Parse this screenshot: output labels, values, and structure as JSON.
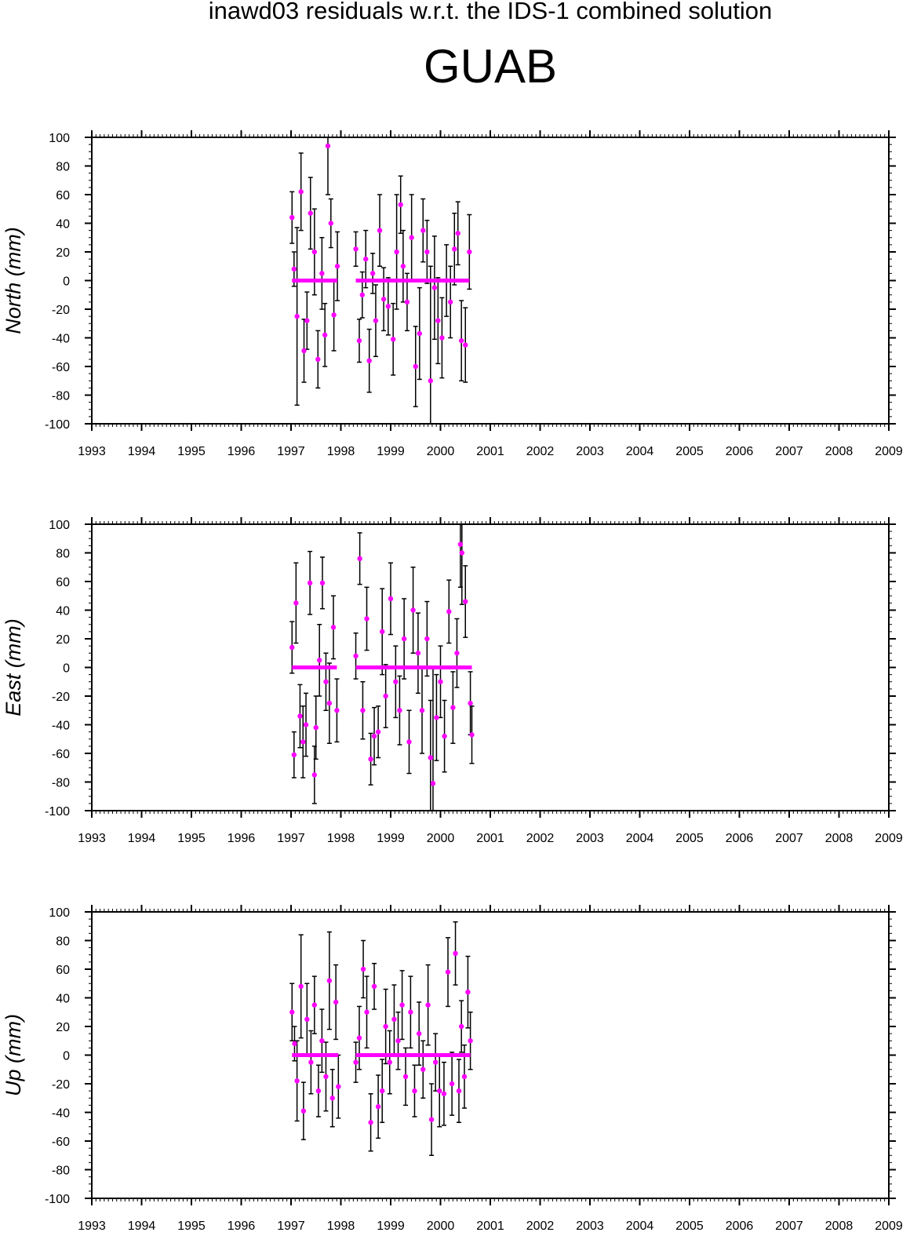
{
  "title": "inawd03 residuals w.r.t. the IDS-1 combined solution",
  "station": "GUAB",
  "colors": {
    "point": "#ff00ff",
    "errorbar": "#000000",
    "axis": "#000000"
  },
  "chart_data": [
    {
      "type": "scatter",
      "ylabel": "North (mm)",
      "xlim": [
        1993,
        2009
      ],
      "ylim": [
        -100,
        100
      ],
      "xticks": [
        "1993",
        "1994",
        "1995",
        "1996",
        "1997",
        "1998",
        "1999",
        "2000",
        "2001",
        "2002",
        "2003",
        "2004",
        "2005",
        "2006",
        "2007",
        "2008",
        "2009"
      ],
      "yticks": [
        "-100",
        "-80",
        "-60",
        "-40",
        "-20",
        "0",
        "20",
        "40",
        "60",
        "80",
        "100"
      ],
      "grid": false,
      "series": [
        {
          "x": [
            1997.02,
            1997.06,
            1997.12,
            1997.2,
            1997.26,
            1997.32,
            1997.39,
            1997.47,
            1997.54,
            1997.62,
            1997.68,
            1997.74,
            1997.8,
            1997.86,
            1997.93,
            1998.3,
            1998.37,
            1998.43,
            1998.5,
            1998.57,
            1998.64,
            1998.7,
            1998.78,
            1998.86,
            1998.95,
            1999.05,
            1999.12,
            1999.2,
            1999.25,
            1999.33,
            1999.42,
            1999.5,
            1999.58,
            1999.65,
            1999.73,
            1999.8,
            1999.88,
            1999.95,
            2000.03,
            2000.12,
            2000.2,
            2000.28,
            2000.35,
            2000.42,
            2000.5,
            2000.58
          ],
          "y": [
            44,
            8,
            -25,
            62,
            -49,
            -28,
            47,
            20,
            -55,
            5,
            -38,
            94,
            40,
            -24,
            10,
            22,
            -42,
            -10,
            15,
            -56,
            5,
            -28,
            35,
            -13,
            -18,
            -41,
            20,
            53,
            10,
            -15,
            30,
            -60,
            -37,
            35,
            20,
            -70,
            -5,
            -28,
            -40,
            0,
            -15,
            22,
            33,
            -42,
            -45,
            20
          ],
          "err": [
            18,
            12,
            62,
            27,
            22,
            20,
            25,
            30,
            20,
            25,
            22,
            34,
            17,
            25,
            24,
            12,
            15,
            16,
            20,
            22,
            14,
            25,
            25,
            22,
            20,
            25,
            40,
            20,
            25,
            20,
            30,
            28,
            32,
            22,
            22,
            80,
            36,
            30,
            28,
            25,
            25,
            25,
            22,
            28,
            26,
            26
          ]
        }
      ]
    },
    {
      "type": "scatter",
      "ylabel": "East (mm)",
      "xlim": [
        1993,
        2009
      ],
      "ylim": [
        -100,
        100
      ],
      "xticks": [
        "1993",
        "1994",
        "1995",
        "1996",
        "1997",
        "1998",
        "1999",
        "2000",
        "2001",
        "2002",
        "2003",
        "2004",
        "2005",
        "2006",
        "2007",
        "2008",
        "2009"
      ],
      "yticks": [
        "-100",
        "-80",
        "-60",
        "-40",
        "-20",
        "0",
        "20",
        "40",
        "60",
        "80",
        "100"
      ],
      "grid": false,
      "series": [
        {
          "x": [
            1997.02,
            1997.06,
            1997.1,
            1997.18,
            1997.24,
            1997.3,
            1997.38,
            1997.47,
            1997.5,
            1997.57,
            1997.63,
            1997.7,
            1997.77,
            1997.85,
            1997.92,
            1998.3,
            1998.38,
            1998.44,
            1998.52,
            1998.6,
            1998.67,
            1998.75,
            1998.83,
            1998.9,
            1999.0,
            1999.1,
            1999.18,
            1999.27,
            1999.37,
            1999.45,
            1999.55,
            1999.63,
            1999.73,
            1999.8,
            1999.85,
            1999.92,
            2000.0,
            2000.08,
            2000.17,
            2000.25,
            2000.33,
            2000.4,
            2000.43,
            2000.5,
            2000.6,
            2000.63
          ],
          "y": [
            14,
            -61,
            45,
            -34,
            -52,
            -40,
            59,
            -75,
            -42,
            5,
            59,
            -10,
            -25,
            28,
            -30,
            8,
            76,
            -30,
            34,
            -64,
            -48,
            -45,
            25,
            -20,
            48,
            -10,
            -30,
            20,
            -52,
            40,
            10,
            -30,
            20,
            -63,
            -81,
            -35,
            -10,
            -48,
            39,
            -28,
            10,
            86,
            80,
            46,
            -25,
            -47
          ],
          "err": [
            18,
            16,
            28,
            22,
            25,
            22,
            22,
            20,
            22,
            25,
            18,
            20,
            28,
            22,
            22,
            16,
            18,
            20,
            22,
            18,
            20,
            18,
            30,
            22,
            25,
            25,
            24,
            28,
            22,
            30,
            28,
            30,
            26,
            40,
            80,
            30,
            25,
            25,
            22,
            25,
            24,
            30,
            36,
            25,
            22,
            20
          ]
        }
      ]
    },
    {
      "type": "scatter",
      "ylabel": "Up (mm)",
      "xlim": [
        1993,
        2009
      ],
      "ylim": [
        -100,
        100
      ],
      "xticks": [
        "1993",
        "1994",
        "1995",
        "1996",
        "1997",
        "1998",
        "1999",
        "2000",
        "2001",
        "2002",
        "2003",
        "2004",
        "2005",
        "2006",
        "2007",
        "2008",
        "2009"
      ],
      "yticks": [
        "-100",
        "-80",
        "-60",
        "-40",
        "-20",
        "0",
        "20",
        "40",
        "60",
        "80",
        "100"
      ],
      "grid": false,
      "series": [
        {
          "x": [
            1997.02,
            1997.07,
            1997.12,
            1997.2,
            1997.25,
            1997.32,
            1997.4,
            1997.47,
            1997.55,
            1997.62,
            1997.7,
            1997.77,
            1997.83,
            1997.9,
            1997.95,
            1998.3,
            1998.37,
            1998.45,
            1998.52,
            1998.6,
            1998.67,
            1998.75,
            1998.83,
            1998.9,
            1998.98,
            1999.07,
            1999.15,
            1999.23,
            1999.3,
            1999.4,
            1999.48,
            1999.57,
            1999.65,
            1999.75,
            1999.82,
            1999.9,
            1999.98,
            2000.07,
            2000.15,
            2000.23,
            2000.3,
            2000.37,
            2000.42,
            2000.48,
            2000.55,
            2000.6
          ],
          "y": [
            30,
            8,
            -18,
            48,
            -39,
            25,
            -5,
            35,
            -25,
            10,
            -15,
            52,
            -30,
            37,
            -22,
            -5,
            12,
            60,
            30,
            -47,
            48,
            -36,
            -25,
            20,
            -5,
            25,
            10,
            35,
            -15,
            30,
            -25,
            15,
            -10,
            35,
            -45,
            -5,
            -25,
            -27,
            58,
            -20,
            71,
            -25,
            20,
            -15,
            44,
            10
          ],
          "err": [
            20,
            12,
            28,
            36,
            20,
            25,
            22,
            20,
            18,
            22,
            24,
            34,
            20,
            26,
            22,
            14,
            22,
            20,
            25,
            20,
            16,
            22,
            22,
            26,
            22,
            24,
            20,
            24,
            20,
            25,
            18,
            22,
            20,
            28,
            25,
            20,
            25,
            22,
            24,
            22,
            22,
            22,
            18,
            22,
            25,
            20
          ]
        }
      ]
    }
  ]
}
